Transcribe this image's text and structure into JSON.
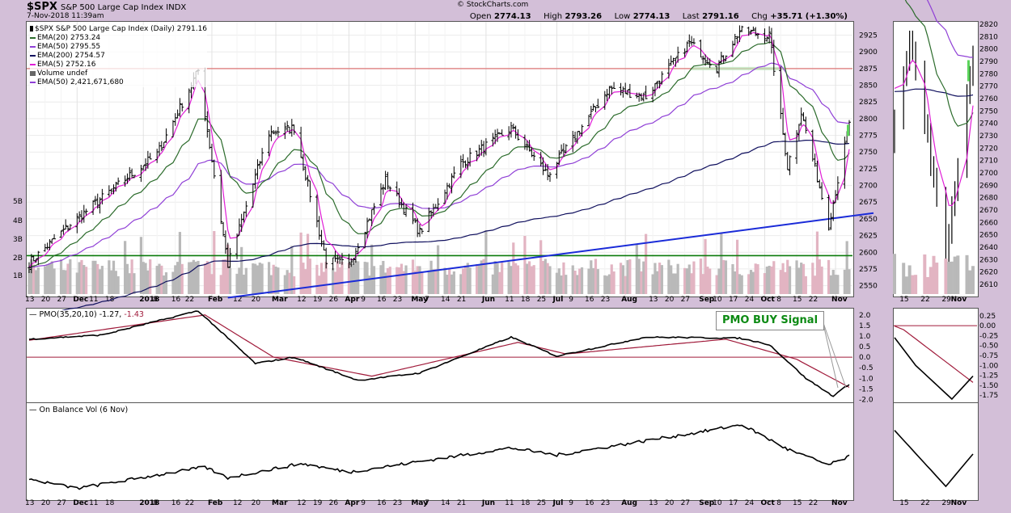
{
  "header": {
    "symbol": "$SPX",
    "name": "S&P 500 Large Cap Index",
    "exchange": "INDX",
    "date": "7-Nov-2018 11:39am",
    "brand": "© StockCharts.com",
    "open_label": "Open",
    "open": "2774.13",
    "high_label": "High",
    "high": "2793.26",
    "low_label": "Low",
    "low": "2774.13",
    "last_label": "Last",
    "last": "2791.16",
    "chg_label": "Chg",
    "chg": "+35.71 (+1.30%)"
  },
  "legend": {
    "price": "$SPX S&P 500 Large Cap Index (Daily) 2791.16",
    "ema20": "EMA(20) 2753.24",
    "ema50": "EMA(50) 2795.55",
    "ema200": "EMA(200) 2754.57",
    "ema5": "EMA(5) 2752.16",
    "volume": "Volume undef",
    "volema": "EMA(50) 2,421,671,680"
  },
  "colors": {
    "background": "#d3bfd8",
    "ema20": "#2b6b2b",
    "ema50": "#8f3fd6",
    "ema200": "#10105e",
    "ema5": "#e01ed6",
    "volume_up": "#b9b9b9",
    "volume_down": "#e2b4c2",
    "support": "#0a7a0a",
    "resistance": "#e08a8a",
    "trendline": "#1a2bd8",
    "pmo_signal": "#a01a3a"
  },
  "pmo": {
    "label": "PMO(35,20,10)",
    "value": "-1.27,",
    "signal": "-1.43"
  },
  "obv": {
    "label": "On Balance Vol (6 Nov)"
  },
  "annotation": {
    "pmo_buy": "PMO BUY Signal"
  },
  "axes": {
    "price_ticks": [
      "2925",
      "2900",
      "2875",
      "2850",
      "2825",
      "2800",
      "2775",
      "2750",
      "2725",
      "2700",
      "2675",
      "2650",
      "2625",
      "2600",
      "2575",
      "2550"
    ],
    "volume_ticks": [
      "5B",
      "4B",
      "3B",
      "2B",
      "1B"
    ],
    "pmo_ticks": [
      "2.0",
      "1.5",
      "1.0",
      "0.5",
      "0.0",
      "-0.5",
      "-1.0",
      "-1.5",
      "-2.0"
    ],
    "zoom_price_ticks": [
      "2820",
      "2810",
      "2800",
      "2790",
      "2780",
      "2770",
      "2760",
      "2750",
      "2740",
      "2730",
      "2720",
      "2710",
      "2700",
      "2690",
      "2680",
      "2670",
      "2660",
      "2650",
      "2640",
      "2630",
      "2620",
      "2610"
    ],
    "zoom_pmo_ticks": [
      "0.25",
      "0.00",
      "-0.25",
      "-0.50",
      "-0.75",
      "-1.00",
      "-1.25",
      "-1.50",
      "-1.75"
    ],
    "x_labels": [
      "13",
      "20",
      "27",
      "Dec",
      "11",
      "18",
      "2018",
      "8",
      "16",
      "22",
      "Feb",
      "12",
      "20",
      "Mar",
      "12",
      "19",
      "26",
      "Apr",
      "9",
      "16",
      "23",
      "May",
      "7",
      "14",
      "21",
      "Jun",
      "11",
      "18",
      "25",
      "Jul",
      "9",
      "16",
      "23",
      "Aug",
      "13",
      "20",
      "27",
      "Sep",
      "10",
      "17",
      "24",
      "Oct",
      "8",
      "15",
      "22",
      "Nov"
    ],
    "zoom_x_labels": [
      "15",
      "22",
      "29",
      "Nov"
    ]
  },
  "chart_data": [
    {
      "type": "candlestick",
      "title": "$SPX S&P 500 Large Cap Index (Daily) 2791.16",
      "ylim": [
        2535,
        2945
      ],
      "months": [
        "Nov 2017",
        "Dec 2017",
        "Jan 2018",
        "Feb 2018",
        "Mar 2018",
        "Apr 2018",
        "May 2018",
        "Jun 2018",
        "Jul 2018",
        "Aug 2018",
        "Sep 2018",
        "Oct 2018",
        "Nov 2018"
      ],
      "close_keypoints": [
        {
          "date": "2017-11-13",
          "close": 2584
        },
        {
          "date": "2017-12-01",
          "close": 2642
        },
        {
          "date": "2017-12-18",
          "close": 2690
        },
        {
          "date": "2018-01-08",
          "close": 2747
        },
        {
          "date": "2018-01-26",
          "close": 2872
        },
        {
          "date": "2018-02-08",
          "close": 2581
        },
        {
          "date": "2018-02-26",
          "close": 2779
        },
        {
          "date": "2018-03-09",
          "close": 2786
        },
        {
          "date": "2018-03-23",
          "close": 2588
        },
        {
          "date": "2018-04-02",
          "close": 2581
        },
        {
          "date": "2018-04-18",
          "close": 2708
        },
        {
          "date": "2018-05-03",
          "close": 2630
        },
        {
          "date": "2018-05-21",
          "close": 2733
        },
        {
          "date": "2018-06-12",
          "close": 2786
        },
        {
          "date": "2018-06-28",
          "close": 2716
        },
        {
          "date": "2018-07-25",
          "close": 2846
        },
        {
          "date": "2018-08-10",
          "close": 2833
        },
        {
          "date": "2018-08-29",
          "close": 2914
        },
        {
          "date": "2018-09-10",
          "close": 2877
        },
        {
          "date": "2018-09-20",
          "close": 2931
        },
        {
          "date": "2018-10-03",
          "close": 2925
        },
        {
          "date": "2018-10-11",
          "close": 2728
        },
        {
          "date": "2018-10-17",
          "close": 2810
        },
        {
          "date": "2018-10-29",
          "close": 2641
        },
        {
          "date": "2018-11-07",
          "close": 2791
        }
      ],
      "ema5_last": 2752.16,
      "ema20_last": 2753.24,
      "ema50_last": 2795.55,
      "ema200_last": 2754.57,
      "lines": [
        {
          "name": "support",
          "value": 2595
        },
        {
          "name": "resistance",
          "value": 2875
        }
      ],
      "trendline": [
        {
          "date": "2018-02-08",
          "value": 2532
        },
        {
          "date": "2018-11-07",
          "value": 2655
        }
      ],
      "volume_ylim": [
        "0",
        "6B"
      ]
    },
    {
      "type": "line",
      "title": "PMO(35,20,10)",
      "ylim": [
        -2.1,
        2.3
      ],
      "series": [
        {
          "name": "PMO",
          "keypoints": [
            {
              "date": "2017-11-13",
              "value": 0.85
            },
            {
              "date": "2017-12-15",
              "value": 1.05
            },
            {
              "date": "2018-01-26",
              "value": 2.2
            },
            {
              "date": "2018-02-20",
              "value": -0.3
            },
            {
              "date": "2018-03-09",
              "value": 0.0
            },
            {
              "date": "2018-04-06",
              "value": -1.1
            },
            {
              "date": "2018-05-03",
              "value": -0.75
            },
            {
              "date": "2018-06-12",
              "value": 0.95
            },
            {
              "date": "2018-07-02",
              "value": 0.05
            },
            {
              "date": "2018-08-10",
              "value": 0.95
            },
            {
              "date": "2018-09-20",
              "value": 0.9
            },
            {
              "date": "2018-10-03",
              "value": 0.6
            },
            {
              "date": "2018-10-19",
              "value": -1.0
            },
            {
              "date": "2018-10-31",
              "value": -1.85
            },
            {
              "date": "2018-11-07",
              "value": -1.27
            }
          ]
        },
        {
          "name": "Signal",
          "keypoints": [
            {
              "date": "2017-11-13",
              "value": 0.8
            },
            {
              "date": "2018-01-29",
              "value": 2.0
            },
            {
              "date": "2018-02-28",
              "value": 0.0
            },
            {
              "date": "2018-04-12",
              "value": -0.9
            },
            {
              "date": "2018-06-15",
              "value": 0.7
            },
            {
              "date": "2018-07-06",
              "value": 0.15
            },
            {
              "date": "2018-09-14",
              "value": 0.85
            },
            {
              "date": "2018-10-15",
              "value": -0.1
            },
            {
              "date": "2018-11-07",
              "value": -1.43
            }
          ]
        }
      ],
      "reference_line": 0
    },
    {
      "type": "line",
      "title": "On Balance Vol (6 Nov)",
      "series": [
        {
          "name": "OBV",
          "keypoints": [
            {
              "date": "2017-11-13",
              "value": 0.18
            },
            {
              "date": "2017-12-04",
              "value": 0.05
            },
            {
              "date": "2018-01-29",
              "value": 0.35
            },
            {
              "date": "2018-02-08",
              "value": 0.2
            },
            {
              "date": "2018-03-12",
              "value": 0.4
            },
            {
              "date": "2018-04-02",
              "value": 0.28
            },
            {
              "date": "2018-06-12",
              "value": 0.62
            },
            {
              "date": "2018-07-02",
              "value": 0.52
            },
            {
              "date": "2018-09-04",
              "value": 0.85
            },
            {
              "date": "2018-09-21",
              "value": 0.95
            },
            {
              "date": "2018-10-11",
              "value": 0.6
            },
            {
              "date": "2018-10-29",
              "value": 0.38
            },
            {
              "date": "2018-11-07",
              "value": 0.5
            }
          ]
        }
      ]
    }
  ]
}
